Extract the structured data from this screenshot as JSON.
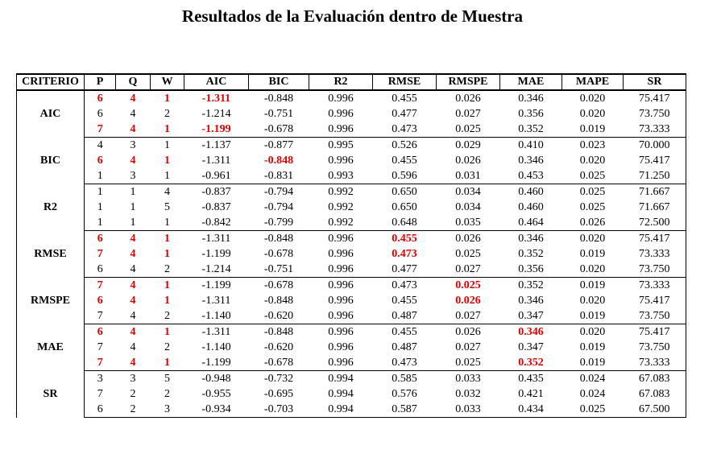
{
  "title": "Resultados de la Evaluación dentro de Muestra",
  "table": {
    "header": [
      "CRITERIO",
      "P",
      "Q",
      "W",
      "AIC",
      "BIC",
      "R2",
      "RMSE",
      "RMSPE",
      "MAE",
      "MAPE",
      "SR"
    ],
    "highlight_color": "#e00000",
    "groups": [
      {
        "label": "AIC",
        "highlight_rows": [
          0,
          2
        ],
        "rows": [
          [
            "6",
            "4",
            "1",
            "-1.311",
            "-0.848",
            "0.996",
            "0.455",
            "0.026",
            "0.346",
            "0.020",
            "75.417"
          ],
          [
            "6",
            "4",
            "2",
            "-1.214",
            "-0.751",
            "0.996",
            "0.477",
            "0.027",
            "0.356",
            "0.020",
            "73.750"
          ],
          [
            "7",
            "4",
            "1",
            "-1.199",
            "-0.678",
            "0.996",
            "0.473",
            "0.025",
            "0.352",
            "0.019",
            "73.333"
          ]
        ]
      },
      {
        "label": "BIC",
        "highlight_rows": [
          1
        ],
        "rows": [
          [
            "4",
            "3",
            "1",
            "-1.137",
            "-0.877",
            "0.995",
            "0.526",
            "0.029",
            "0.410",
            "0.023",
            "70.000"
          ],
          [
            "6",
            "4",
            "1",
            "-1.311",
            "-0.848",
            "0.996",
            "0.455",
            "0.026",
            "0.346",
            "0.020",
            "75.417"
          ],
          [
            "1",
            "3",
            "1",
            "-0.961",
            "-0.831",
            "0.993",
            "0.596",
            "0.031",
            "0.453",
            "0.025",
            "71.250"
          ]
        ]
      },
      {
        "label": "R2",
        "highlight_rows": [],
        "rows": [
          [
            "1",
            "1",
            "4",
            "-0.837",
            "-0.794",
            "0.992",
            "0.650",
            "0.034",
            "0.460",
            "0.025",
            "71.667"
          ],
          [
            "1",
            "1",
            "5",
            "-0.837",
            "-0.794",
            "0.992",
            "0.650",
            "0.034",
            "0.460",
            "0.025",
            "71.667"
          ],
          [
            "1",
            "1",
            "1",
            "-0.842",
            "-0.799",
            "0.992",
            "0.648",
            "0.035",
            "0.464",
            "0.026",
            "72.500"
          ]
        ]
      },
      {
        "label": "RMSE",
        "highlight_rows": [
          0,
          1
        ],
        "rows": [
          [
            "6",
            "4",
            "1",
            "-1.311",
            "-0.848",
            "0.996",
            "0.455",
            "0.026",
            "0.346",
            "0.020",
            "75.417"
          ],
          [
            "7",
            "4",
            "1",
            "-1.199",
            "-0.678",
            "0.996",
            "0.473",
            "0.025",
            "0.352",
            "0.019",
            "73.333"
          ],
          [
            "6",
            "4",
            "2",
            "-1.214",
            "-0.751",
            "0.996",
            "0.477",
            "0.027",
            "0.356",
            "0.020",
            "73.750"
          ]
        ]
      },
      {
        "label": "RMSPE",
        "highlight_rows": [
          0,
          1
        ],
        "rows": [
          [
            "7",
            "4",
            "1",
            "-1.199",
            "-0.678",
            "0.996",
            "0.473",
            "0.025",
            "0.352",
            "0.019",
            "73.333"
          ],
          [
            "6",
            "4",
            "1",
            "-1.311",
            "-0.848",
            "0.996",
            "0.455",
            "0.026",
            "0.346",
            "0.020",
            "75.417"
          ],
          [
            "7",
            "4",
            "2",
            "-1.140",
            "-0.620",
            "0.996",
            "0.487",
            "0.027",
            "0.347",
            "0.019",
            "73.750"
          ]
        ]
      },
      {
        "label": "MAE",
        "highlight_rows": [
          0,
          2
        ],
        "rows": [
          [
            "6",
            "4",
            "1",
            "-1.311",
            "-0.848",
            "0.996",
            "0.455",
            "0.026",
            "0.346",
            "0.020",
            "75.417"
          ],
          [
            "7",
            "4",
            "2",
            "-1.140",
            "-0.620",
            "0.996",
            "0.487",
            "0.027",
            "0.347",
            "0.019",
            "73.750"
          ],
          [
            "7",
            "4",
            "1",
            "-1.199",
            "-0.678",
            "0.996",
            "0.473",
            "0.025",
            "0.352",
            "0.019",
            "73.333"
          ]
        ]
      },
      {
        "label": "SR",
        "highlight_rows": [],
        "rows": [
          [
            "3",
            "3",
            "5",
            "-0.948",
            "-0.732",
            "0.994",
            "0.585",
            "0.033",
            "0.435",
            "0.024",
            "67.083"
          ],
          [
            "7",
            "2",
            "2",
            "-0.955",
            "-0.695",
            "0.994",
            "0.576",
            "0.032",
            "0.421",
            "0.024",
            "67.083"
          ],
          [
            "6",
            "2",
            "3",
            "-0.934",
            "-0.703",
            "0.994",
            "0.587",
            "0.033",
            "0.434",
            "0.025",
            "67.500"
          ]
        ]
      }
    ]
  }
}
